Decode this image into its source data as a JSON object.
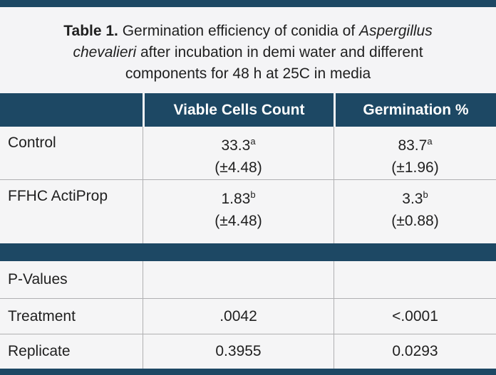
{
  "colors": {
    "navy": "#1d4864",
    "background": "#f4f4f6",
    "cell_background": "#f5f5f6",
    "divider": "#b0b0b2",
    "text": "#1f1f1f",
    "header_text": "#ffffff"
  },
  "caption": {
    "line1_bold": "Table 1.",
    "line1_text": " Germination efficiency of conidia of ",
    "line1_italic": "Aspergillus",
    "line2_italic": "chevalieri",
    "line2_text": " after incubation in demi water and different",
    "line3_text": "components for 48 h at 25C in media"
  },
  "header": {
    "row_label": "",
    "viable": "Viable Cells Count",
    "germination": "Germination %"
  },
  "treatment_rows": [
    {
      "label": "Control",
      "viable_mean": "33.3",
      "viable_sup": "a",
      "viable_sd": "(±4.48)",
      "germination_mean": "83.7",
      "germination_sup": "a",
      "germination_sd": "(±1.96)"
    },
    {
      "label": "FFHC ActiProp",
      "viable_mean": "1.83",
      "viable_sup": "b",
      "viable_sd": "(±4.48)",
      "germination_mean": "3.3",
      "germination_sup": "b",
      "germination_sd": "(±0.88)"
    }
  ],
  "pvalues": {
    "section_label": "P-Values",
    "rows": [
      {
        "label": "Treatment",
        "viable": ".0042",
        "germination": "<.0001"
      },
      {
        "label": "Replicate",
        "viable": "0.3955",
        "germination": "0.0293"
      }
    ]
  },
  "chart_data": {
    "type": "table",
    "columns": [
      "",
      "Viable Cells Count",
      "Germination %"
    ],
    "rows": [
      [
        "Control",
        "33.3 (a) (±4.48)",
        "83.7 (a) (±1.96)"
      ],
      [
        "FFHC ActiProp",
        "1.83 (b) (±4.48)",
        "3.3 (b) (±0.88)"
      ],
      [
        "P-Values",
        "",
        ""
      ],
      [
        "Treatment",
        ".0042",
        "<.0001"
      ],
      [
        "Replicate",
        "0.3955",
        "0.0293"
      ]
    ]
  }
}
